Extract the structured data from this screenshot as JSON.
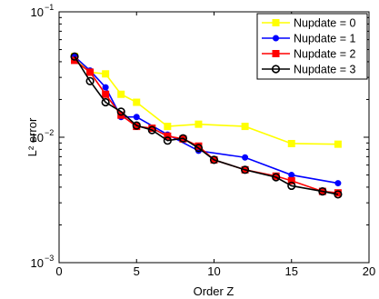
{
  "chart_data": {
    "type": "line",
    "xlabel": "Order Z",
    "ylabel": "L² error",
    "xlim": [
      0,
      20
    ],
    "ylim": [
      0.001,
      0.1
    ],
    "yscale": "log",
    "grid": false,
    "legend_position": "top-right",
    "x_ticks": [
      0,
      5,
      10,
      15,
      20
    ],
    "x_tick_labels": [
      "0",
      "5",
      "10",
      "15",
      "20"
    ],
    "y_ticks": [
      0.001,
      0.01,
      0.1
    ],
    "y_tick_labels": [
      {
        "base": "10",
        "exp": "−3"
      },
      {
        "base": "10",
        "exp": "−2"
      },
      {
        "base": "10",
        "exp": "−1"
      }
    ],
    "series": [
      {
        "name": "Nupdate = 0",
        "color": "#ffff00",
        "marker": "square",
        "x": [
          1,
          2,
          3,
          4,
          5,
          7,
          9,
          12,
          15,
          18
        ],
        "y": [
          0.044,
          0.033,
          0.032,
          0.022,
          0.019,
          0.0122,
          0.0127,
          0.0122,
          0.0089,
          0.0088
        ]
      },
      {
        "name": "Nupdate = 1",
        "color": "#0000ff",
        "marker": "dot",
        "x": [
          1,
          2,
          3,
          4,
          5,
          7,
          9,
          12,
          15,
          18
        ],
        "y": [
          0.044,
          0.034,
          0.025,
          0.0145,
          0.0145,
          0.0105,
          0.0078,
          0.0069,
          0.005,
          0.0043
        ]
      },
      {
        "name": "Nupdate = 2",
        "color": "#ff0000",
        "marker": "square",
        "x": [
          1,
          2,
          3,
          4,
          5,
          6,
          7,
          8,
          9,
          10,
          12,
          14,
          15,
          17,
          18
        ],
        "y": [
          0.041,
          0.033,
          0.022,
          0.015,
          0.0122,
          0.0118,
          0.0102,
          0.0097,
          0.0085,
          0.0066,
          0.0055,
          0.0049,
          0.0045,
          0.0037,
          0.0036
        ]
      },
      {
        "name": "Nupdate = 3",
        "color": "#000000",
        "marker": "circle",
        "x": [
          1,
          2,
          3,
          4,
          5,
          6,
          7,
          8,
          9,
          10,
          12,
          14,
          15,
          17,
          18
        ],
        "y": [
          0.044,
          0.028,
          0.019,
          0.016,
          0.0124,
          0.0114,
          0.0094,
          0.0098,
          0.0082,
          0.0066,
          0.0055,
          0.0048,
          0.0041,
          0.0037,
          0.0035
        ]
      }
    ]
  }
}
